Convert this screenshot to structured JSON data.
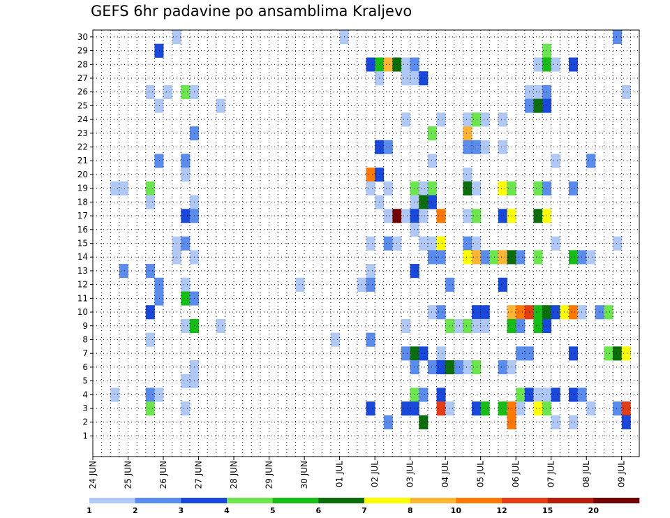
{
  "page": {
    "title": "GEFS 6hr padavine po ansamblima Kraljevo"
  },
  "chart_data": {
    "type": "heatmap",
    "title": "GEFS 6hr padavine po ansamblima Kraljevo",
    "x_categories": [
      "24 JUN",
      "25 JUN",
      "26 JUN",
      "27 JUN",
      "28 JUN",
      "29 JUN",
      "30 JUN",
      "01 JUL",
      "02 JUL",
      "03 JUL",
      "04 JUL",
      "05 JUL",
      "06 JUL",
      "07 JUL",
      "08 JUL",
      "09 JUL"
    ],
    "x_steps_total": 62,
    "x_steps_per_day": 4,
    "y_categories": [
      1,
      2,
      3,
      4,
      5,
      6,
      7,
      8,
      9,
      10,
      11,
      12,
      13,
      14,
      15,
      16,
      17,
      18,
      19,
      20,
      21,
      22,
      23,
      24,
      25,
      26,
      27,
      28,
      29,
      30
    ],
    "ylim": [
      0,
      30
    ],
    "grid": true,
    "colorbar": {
      "labels": [
        "1",
        "2",
        "3",
        "4",
        "5",
        "6",
        "7",
        "8",
        "10",
        "12",
        "15",
        "20"
      ],
      "colors": [
        "#afc8f5",
        "#5a8ced",
        "#1948dc",
        "#6ce64d",
        "#14be14",
        "#0a6e0a",
        "#ffff00",
        "#ffb432",
        "#ff7800",
        "#e63c14",
        "#b41e0a",
        "#730000"
      ]
    },
    "cells": [
      {
        "t": 9,
        "m": 30,
        "c": 0
      },
      {
        "t": 28,
        "m": 30,
        "c": 0
      },
      {
        "t": 59,
        "m": 30,
        "c": 1
      },
      {
        "t": 7,
        "m": 29,
        "c": 2
      },
      {
        "t": 51,
        "m": 29,
        "c": 3
      },
      {
        "t": 31,
        "m": 28,
        "c": 2
      },
      {
        "t": 32,
        "m": 28,
        "c": 4
      },
      {
        "t": 33,
        "m": 28,
        "c": 7
      },
      {
        "t": 34,
        "m": 28,
        "c": 5
      },
      {
        "t": 35,
        "m": 28,
        "c": 0
      },
      {
        "t": 36,
        "m": 28,
        "c": 1
      },
      {
        "t": 50,
        "m": 28,
        "c": 0
      },
      {
        "t": 51,
        "m": 28,
        "c": 4
      },
      {
        "t": 52,
        "m": 28,
        "c": 0
      },
      {
        "t": 54,
        "m": 28,
        "c": 2
      },
      {
        "t": 32,
        "m": 27,
        "c": 0
      },
      {
        "t": 35,
        "m": 27,
        "c": 0
      },
      {
        "t": 36,
        "m": 27,
        "c": 0
      },
      {
        "t": 37,
        "m": 27,
        "c": 2
      },
      {
        "t": 6,
        "m": 26,
        "c": 0
      },
      {
        "t": 8,
        "m": 26,
        "c": 0
      },
      {
        "t": 10,
        "m": 26,
        "c": 3
      },
      {
        "t": 11,
        "m": 26,
        "c": 0
      },
      {
        "t": 49,
        "m": 26,
        "c": 0
      },
      {
        "t": 50,
        "m": 26,
        "c": 0
      },
      {
        "t": 51,
        "m": 26,
        "c": 1
      },
      {
        "t": 60,
        "m": 26,
        "c": 0
      },
      {
        "t": 7,
        "m": 25,
        "c": 0
      },
      {
        "t": 14,
        "m": 25,
        "c": 0
      },
      {
        "t": 49,
        "m": 25,
        "c": 1
      },
      {
        "t": 50,
        "m": 25,
        "c": 5
      },
      {
        "t": 51,
        "m": 25,
        "c": 2
      },
      {
        "t": 35,
        "m": 24,
        "c": 0
      },
      {
        "t": 39,
        "m": 24,
        "c": 0
      },
      {
        "t": 42,
        "m": 24,
        "c": 0
      },
      {
        "t": 43,
        "m": 24,
        "c": 3
      },
      {
        "t": 44,
        "m": 24,
        "c": 0
      },
      {
        "t": 46,
        "m": 24,
        "c": 0
      },
      {
        "t": 11,
        "m": 23,
        "c": 1
      },
      {
        "t": 38,
        "m": 23,
        "c": 3
      },
      {
        "t": 42,
        "m": 23,
        "c": 7
      },
      {
        "t": 32,
        "m": 22,
        "c": 2
      },
      {
        "t": 33,
        "m": 22,
        "c": 1
      },
      {
        "t": 42,
        "m": 22,
        "c": 1
      },
      {
        "t": 43,
        "m": 22,
        "c": 1
      },
      {
        "t": 44,
        "m": 22,
        "c": 0
      },
      {
        "t": 46,
        "m": 22,
        "c": 0
      },
      {
        "t": 7,
        "m": 21,
        "c": 1
      },
      {
        "t": 10,
        "m": 21,
        "c": 1
      },
      {
        "t": 38,
        "m": 21,
        "c": 0
      },
      {
        "t": 52,
        "m": 21,
        "c": 0
      },
      {
        "t": 56,
        "m": 21,
        "c": 1
      },
      {
        "t": 10,
        "m": 20,
        "c": 0
      },
      {
        "t": 31,
        "m": 20,
        "c": 8
      },
      {
        "t": 32,
        "m": 20,
        "c": 2
      },
      {
        "t": 42,
        "m": 20,
        "c": 0
      },
      {
        "t": 2,
        "m": 19,
        "c": 0
      },
      {
        "t": 3,
        "m": 19,
        "c": 0
      },
      {
        "t": 6,
        "m": 19,
        "c": 3
      },
      {
        "t": 31,
        "m": 19,
        "c": 0
      },
      {
        "t": 33,
        "m": 19,
        "c": 0
      },
      {
        "t": 36,
        "m": 19,
        "c": 3
      },
      {
        "t": 37,
        "m": 19,
        "c": 0
      },
      {
        "t": 38,
        "m": 19,
        "c": 3
      },
      {
        "t": 42,
        "m": 19,
        "c": 5
      },
      {
        "t": 43,
        "m": 19,
        "c": 0
      },
      {
        "t": 46,
        "m": 19,
        "c": 6
      },
      {
        "t": 47,
        "m": 19,
        "c": 3
      },
      {
        "t": 50,
        "m": 19,
        "c": 3
      },
      {
        "t": 51,
        "m": 19,
        "c": 1
      },
      {
        "t": 54,
        "m": 19,
        "c": 1
      },
      {
        "t": 6,
        "m": 18,
        "c": 0
      },
      {
        "t": 11,
        "m": 18,
        "c": 0
      },
      {
        "t": 32,
        "m": 18,
        "c": 0
      },
      {
        "t": 36,
        "m": 18,
        "c": 0
      },
      {
        "t": 37,
        "m": 18,
        "c": 5
      },
      {
        "t": 38,
        "m": 18,
        "c": 2
      },
      {
        "t": 10,
        "m": 17,
        "c": 2
      },
      {
        "t": 11,
        "m": 17,
        "c": 1
      },
      {
        "t": 33,
        "m": 17,
        "c": 0
      },
      {
        "t": 34,
        "m": 17,
        "c": 11
      },
      {
        "t": 35,
        "m": 17,
        "c": 0
      },
      {
        "t": 36,
        "m": 17,
        "c": 2
      },
      {
        "t": 37,
        "m": 17,
        "c": 0
      },
      {
        "t": 39,
        "m": 17,
        "c": 8
      },
      {
        "t": 42,
        "m": 17,
        "c": 0
      },
      {
        "t": 43,
        "m": 17,
        "c": 3
      },
      {
        "t": 46,
        "m": 17,
        "c": 2
      },
      {
        "t": 47,
        "m": 17,
        "c": 6
      },
      {
        "t": 50,
        "m": 17,
        "c": 5
      },
      {
        "t": 51,
        "m": 17,
        "c": 6
      },
      {
        "t": 36,
        "m": 16,
        "c": 0
      },
      {
        "t": 9,
        "m": 15,
        "c": 0
      },
      {
        "t": 10,
        "m": 15,
        "c": 1
      },
      {
        "t": 31,
        "m": 15,
        "c": 0
      },
      {
        "t": 33,
        "m": 15,
        "c": 1
      },
      {
        "t": 34,
        "m": 15,
        "c": 0
      },
      {
        "t": 37,
        "m": 15,
        "c": 0
      },
      {
        "t": 38,
        "m": 15,
        "c": 0
      },
      {
        "t": 39,
        "m": 15,
        "c": 6
      },
      {
        "t": 42,
        "m": 15,
        "c": 1
      },
      {
        "t": 43,
        "m": 15,
        "c": 0
      },
      {
        "t": 52,
        "m": 15,
        "c": 0
      },
      {
        "t": 59,
        "m": 15,
        "c": 0
      },
      {
        "t": 9,
        "m": 14,
        "c": 0
      },
      {
        "t": 11,
        "m": 14,
        "c": 0
      },
      {
        "t": 38,
        "m": 14,
        "c": 1
      },
      {
        "t": 39,
        "m": 14,
        "c": 1
      },
      {
        "t": 42,
        "m": 14,
        "c": 6
      },
      {
        "t": 43,
        "m": 14,
        "c": 7
      },
      {
        "t": 44,
        "m": 14,
        "c": 1
      },
      {
        "t": 45,
        "m": 14,
        "c": 3
      },
      {
        "t": 46,
        "m": 14,
        "c": 7
      },
      {
        "t": 47,
        "m": 14,
        "c": 5
      },
      {
        "t": 48,
        "m": 14,
        "c": 1
      },
      {
        "t": 50,
        "m": 14,
        "c": 3
      },
      {
        "t": 54,
        "m": 14,
        "c": 4
      },
      {
        "t": 55,
        "m": 14,
        "c": 1
      },
      {
        "t": 56,
        "m": 14,
        "c": 0
      },
      {
        "t": 3,
        "m": 13,
        "c": 1
      },
      {
        "t": 6,
        "m": 13,
        "c": 1
      },
      {
        "t": 31,
        "m": 13,
        "c": 0
      },
      {
        "t": 36,
        "m": 13,
        "c": 2
      },
      {
        "t": 7,
        "m": 12,
        "c": 1
      },
      {
        "t": 10,
        "m": 12,
        "c": 0
      },
      {
        "t": 23,
        "m": 12,
        "c": 0
      },
      {
        "t": 30,
        "m": 12,
        "c": 0
      },
      {
        "t": 31,
        "m": 12,
        "c": 1
      },
      {
        "t": 40,
        "m": 12,
        "c": 1
      },
      {
        "t": 46,
        "m": 12,
        "c": 2
      },
      {
        "t": 7,
        "m": 11,
        "c": 1
      },
      {
        "t": 10,
        "m": 11,
        "c": 4
      },
      {
        "t": 11,
        "m": 11,
        "c": 1
      },
      {
        "t": 6,
        "m": 10,
        "c": 2
      },
      {
        "t": 38,
        "m": 10,
        "c": 0
      },
      {
        "t": 39,
        "m": 10,
        "c": 1
      },
      {
        "t": 43,
        "m": 10,
        "c": 2
      },
      {
        "t": 44,
        "m": 10,
        "c": 2
      },
      {
        "t": 47,
        "m": 10,
        "c": 7
      },
      {
        "t": 48,
        "m": 10,
        "c": 8
      },
      {
        "t": 49,
        "m": 10,
        "c": 9
      },
      {
        "t": 50,
        "m": 10,
        "c": 4
      },
      {
        "t": 51,
        "m": 10,
        "c": 5
      },
      {
        "t": 52,
        "m": 10,
        "c": 2
      },
      {
        "t": 53,
        "m": 10,
        "c": 6
      },
      {
        "t": 54,
        "m": 10,
        "c": 8
      },
      {
        "t": 55,
        "m": 10,
        "c": 0
      },
      {
        "t": 57,
        "m": 10,
        "c": 1
      },
      {
        "t": 58,
        "m": 10,
        "c": 3
      },
      {
        "t": 10,
        "m": 9,
        "c": 0
      },
      {
        "t": 11,
        "m": 9,
        "c": 4
      },
      {
        "t": 14,
        "m": 9,
        "c": 0
      },
      {
        "t": 35,
        "m": 9,
        "c": 0
      },
      {
        "t": 40,
        "m": 9,
        "c": 3
      },
      {
        "t": 41,
        "m": 9,
        "c": 0
      },
      {
        "t": 42,
        "m": 9,
        "c": 3
      },
      {
        "t": 43,
        "m": 9,
        "c": 0
      },
      {
        "t": 44,
        "m": 9,
        "c": 0
      },
      {
        "t": 47,
        "m": 9,
        "c": 4
      },
      {
        "t": 48,
        "m": 9,
        "c": 1
      },
      {
        "t": 50,
        "m": 9,
        "c": 4
      },
      {
        "t": 51,
        "m": 9,
        "c": 2
      },
      {
        "t": 6,
        "m": 8,
        "c": 0
      },
      {
        "t": 27,
        "m": 8,
        "c": 0
      },
      {
        "t": 31,
        "m": 8,
        "c": 1
      },
      {
        "t": 35,
        "m": 7,
        "c": 1
      },
      {
        "t": 36,
        "m": 7,
        "c": 5
      },
      {
        "t": 37,
        "m": 7,
        "c": 2
      },
      {
        "t": 39,
        "m": 7,
        "c": 0
      },
      {
        "t": 48,
        "m": 7,
        "c": 1
      },
      {
        "t": 49,
        "m": 7,
        "c": 1
      },
      {
        "t": 54,
        "m": 7,
        "c": 2
      },
      {
        "t": 58,
        "m": 7,
        "c": 3
      },
      {
        "t": 59,
        "m": 7,
        "c": 5
      },
      {
        "t": 60,
        "m": 7,
        "c": 6
      },
      {
        "t": 11,
        "m": 6,
        "c": 0
      },
      {
        "t": 36,
        "m": 6,
        "c": 1
      },
      {
        "t": 38,
        "m": 6,
        "c": 1
      },
      {
        "t": 39,
        "m": 6,
        "c": 2
      },
      {
        "t": 40,
        "m": 6,
        "c": 5
      },
      {
        "t": 41,
        "m": 6,
        "c": 1
      },
      {
        "t": 42,
        "m": 6,
        "c": 0
      },
      {
        "t": 43,
        "m": 6,
        "c": 3
      },
      {
        "t": 46,
        "m": 6,
        "c": 1
      },
      {
        "t": 47,
        "m": 6,
        "c": 0
      },
      {
        "t": 10,
        "m": 5,
        "c": 0
      },
      {
        "t": 11,
        "m": 5,
        "c": 0
      },
      {
        "t": 2,
        "m": 4,
        "c": 0
      },
      {
        "t": 6,
        "m": 4,
        "c": 1
      },
      {
        "t": 7,
        "m": 4,
        "c": 0
      },
      {
        "t": 36,
        "m": 4,
        "c": 3
      },
      {
        "t": 37,
        "m": 4,
        "c": 1
      },
      {
        "t": 39,
        "m": 4,
        "c": 2
      },
      {
        "t": 48,
        "m": 4,
        "c": 3
      },
      {
        "t": 49,
        "m": 4,
        "c": 2
      },
      {
        "t": 50,
        "m": 4,
        "c": 0
      },
      {
        "t": 51,
        "m": 4,
        "c": 0
      },
      {
        "t": 52,
        "m": 4,
        "c": 2
      },
      {
        "t": 54,
        "m": 4,
        "c": 2
      },
      {
        "t": 55,
        "m": 4,
        "c": 1
      },
      {
        "t": 6,
        "m": 3,
        "c": 3
      },
      {
        "t": 10,
        "m": 3,
        "c": 0
      },
      {
        "t": 31,
        "m": 3,
        "c": 2
      },
      {
        "t": 35,
        "m": 3,
        "c": 2
      },
      {
        "t": 36,
        "m": 3,
        "c": 2
      },
      {
        "t": 39,
        "m": 3,
        "c": 9
      },
      {
        "t": 40,
        "m": 3,
        "c": 0
      },
      {
        "t": 43,
        "m": 3,
        "c": 2
      },
      {
        "t": 44,
        "m": 3,
        "c": 4
      },
      {
        "t": 46,
        "m": 3,
        "c": 4
      },
      {
        "t": 47,
        "m": 3,
        "c": 8
      },
      {
        "t": 48,
        "m": 3,
        "c": 0
      },
      {
        "t": 50,
        "m": 3,
        "c": 6
      },
      {
        "t": 51,
        "m": 3,
        "c": 3
      },
      {
        "t": 56,
        "m": 3,
        "c": 0
      },
      {
        "t": 59,
        "m": 3,
        "c": 1
      },
      {
        "t": 60,
        "m": 3,
        "c": 9
      },
      {
        "t": 33,
        "m": 2,
        "c": 1
      },
      {
        "t": 37,
        "m": 2,
        "c": 5
      },
      {
        "t": 47,
        "m": 2,
        "c": 8
      },
      {
        "t": 52,
        "m": 2,
        "c": 0
      },
      {
        "t": 54,
        "m": 2,
        "c": 0
      },
      {
        "t": 60,
        "m": 2,
        "c": 2
      }
    ]
  }
}
